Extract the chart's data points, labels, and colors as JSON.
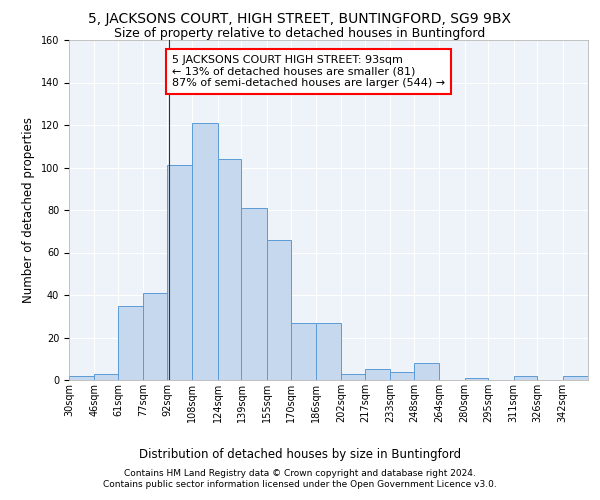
{
  "title1": "5, JACKSONS COURT, HIGH STREET, BUNTINGFORD, SG9 9BX",
  "title2": "Size of property relative to detached houses in Buntingford",
  "xlabel": "Distribution of detached houses by size in Buntingford",
  "ylabel": "Number of detached properties",
  "bin_labels": [
    "30sqm",
    "46sqm",
    "61sqm",
    "77sqm",
    "92sqm",
    "108sqm",
    "124sqm",
    "139sqm",
    "155sqm",
    "170sqm",
    "186sqm",
    "202sqm",
    "217sqm",
    "233sqm",
    "248sqm",
    "264sqm",
    "280sqm",
    "295sqm",
    "311sqm",
    "326sqm",
    "342sqm"
  ],
  "bar_heights": [
    2,
    3,
    35,
    41,
    101,
    121,
    104,
    81,
    66,
    27,
    27,
    3,
    5,
    4,
    8,
    0,
    1,
    0,
    2,
    0,
    2
  ],
  "bar_color": "#c5d8ed",
  "bar_edge_color": "#5b9bd5",
  "bin_edges": [
    30,
    46,
    61,
    77,
    92,
    108,
    124,
    139,
    155,
    170,
    186,
    202,
    217,
    233,
    248,
    264,
    280,
    295,
    311,
    326,
    342,
    358
  ],
  "annotation_text": "5 JACKSONS COURT HIGH STREET: 93sqm\n← 13% of detached houses are smaller (81)\n87% of semi-detached houses are larger (544) →",
  "vline_x": 93,
  "yticks": [
    0,
    20,
    40,
    60,
    80,
    100,
    120,
    140,
    160
  ],
  "ylim": [
    0,
    160
  ],
  "footer1": "Contains HM Land Registry data © Crown copyright and database right 2024.",
  "footer2": "Contains public sector information licensed under the Open Government Licence v3.0.",
  "background_color": "#eef2f9",
  "grid_color": "#ffffff",
  "title1_fontsize": 10,
  "title2_fontsize": 9,
  "axis_label_fontsize": 8.5,
  "tick_fontsize": 7,
  "annotation_fontsize": 8,
  "footer_fontsize": 6.5
}
